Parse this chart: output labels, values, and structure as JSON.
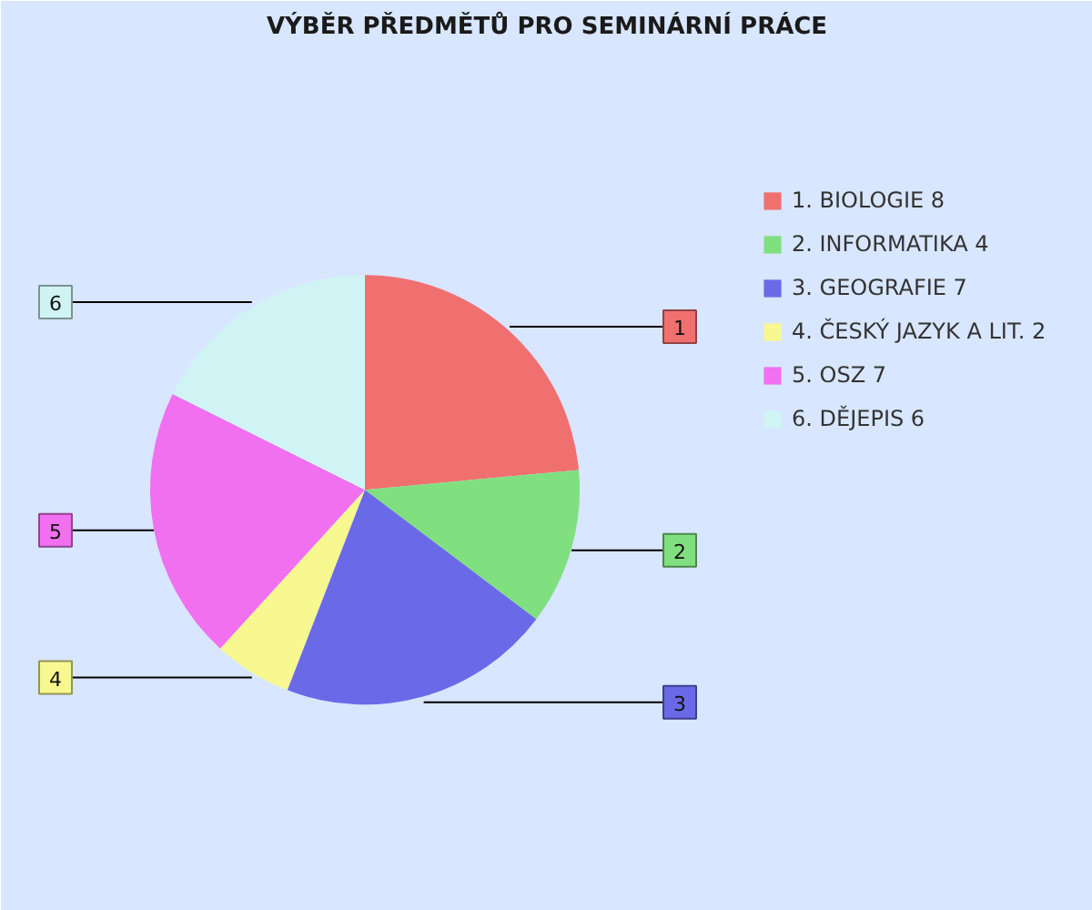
{
  "chart_data": {
    "type": "pie",
    "title": "VÝBĚR PŘEDMĚTŮ PRO SEMINÁRNÍ PRÁCE",
    "categories": [
      "1. BIOLOGIE 8",
      "2. INFORMATIKA 4",
      "3. GEOGRAFIE 7",
      "4. ČESKÝ JAZYK A LIT. 2",
      "5. OSZ 7",
      "6. DĚJEPIS 6"
    ],
    "values": [
      8,
      4,
      7,
      2,
      7,
      6
    ],
    "colors": [
      "#f07070",
      "#80e080",
      "#6a6ae8",
      "#f8f890",
      "#f070f0",
      "#d0f4f4"
    ],
    "legend": "top right",
    "annotations": [
      "1",
      "2",
      "3",
      "4",
      "5",
      "6"
    ]
  }
}
